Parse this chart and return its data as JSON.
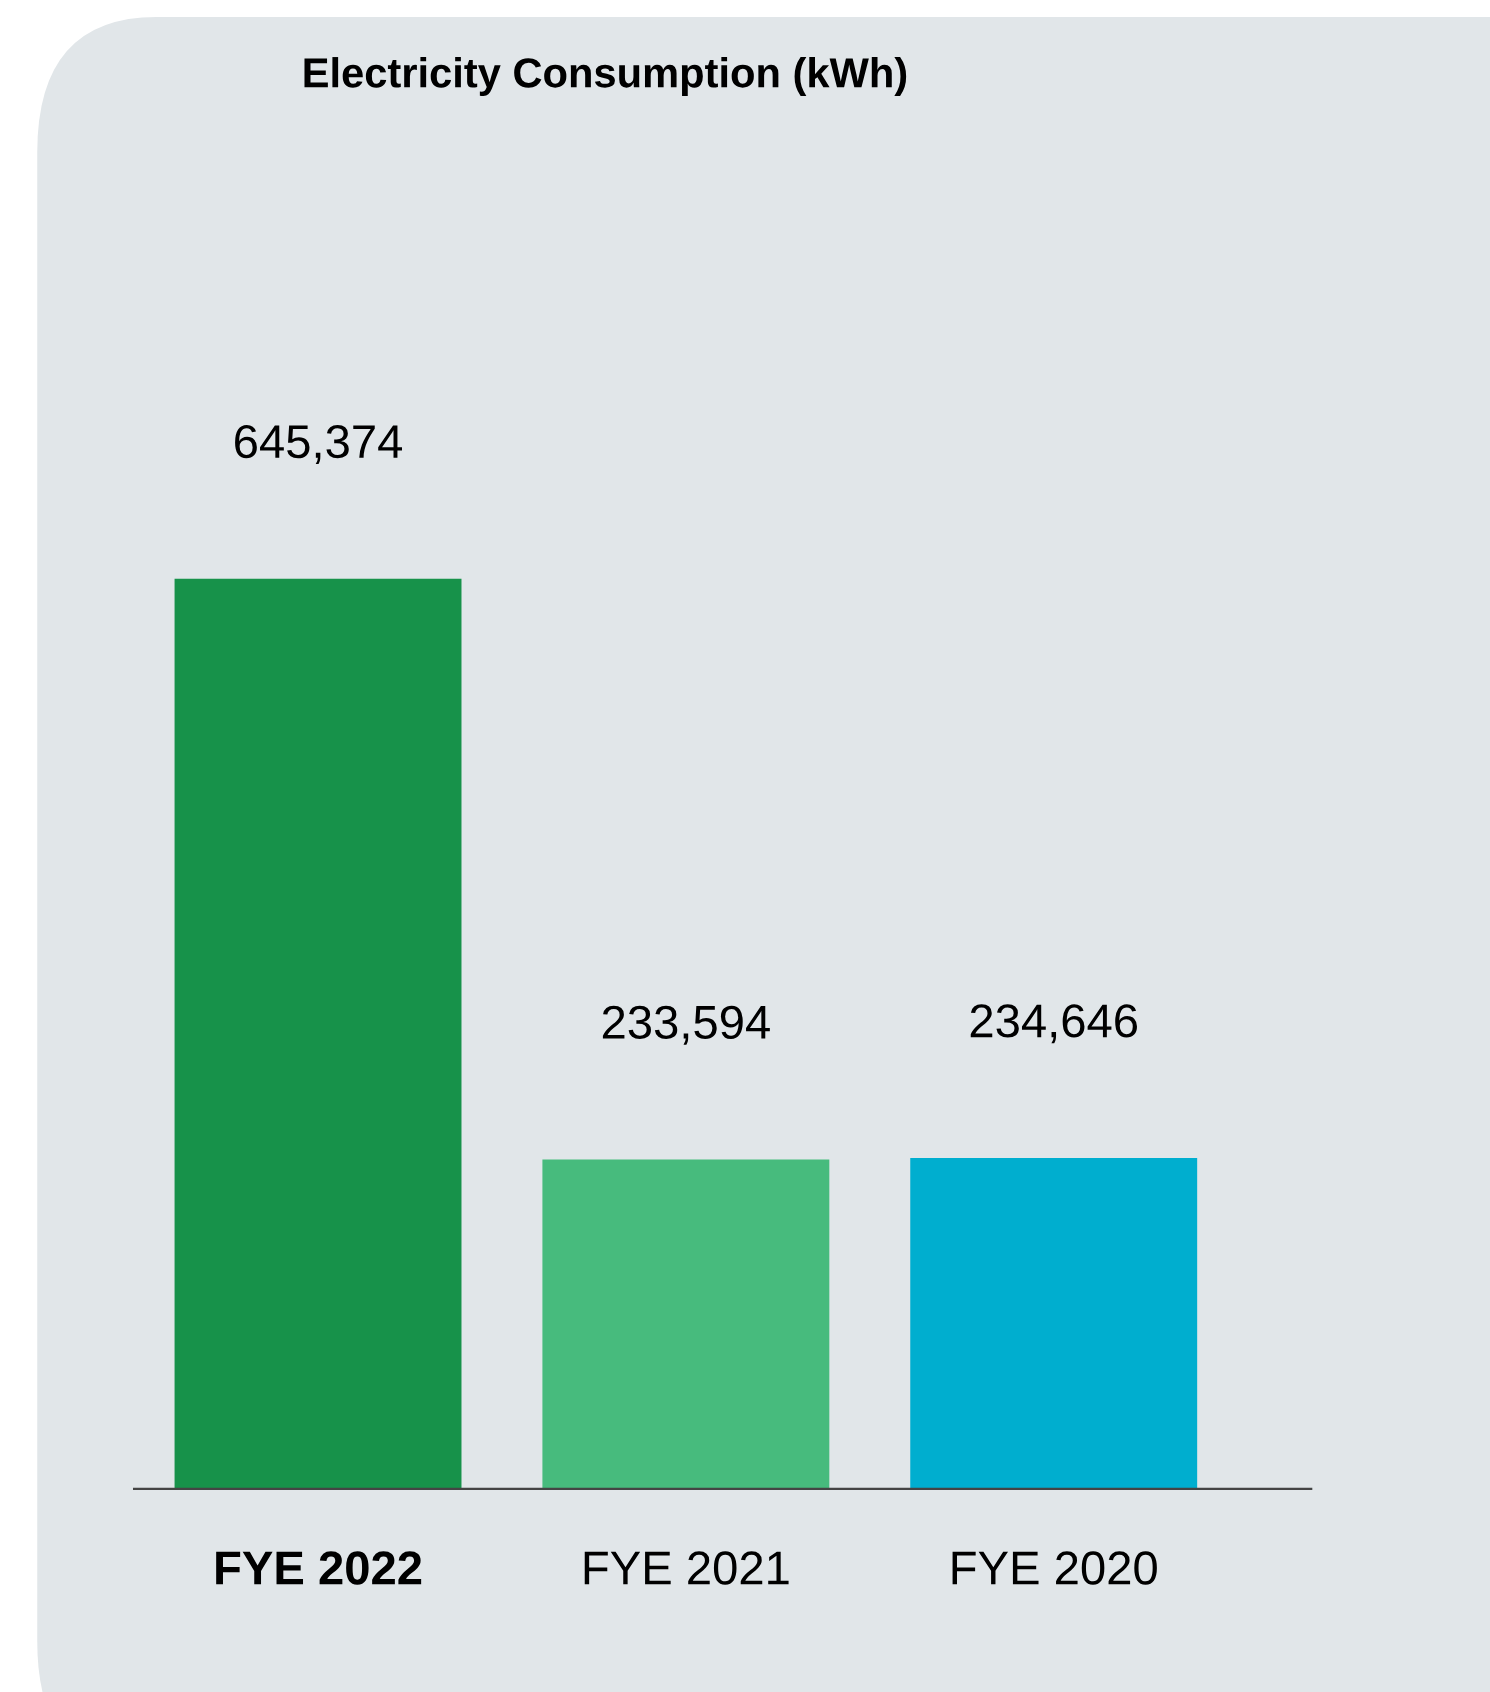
{
  "chart_data": {
    "type": "bar",
    "title": "Electricity Consumption (kWh)",
    "categories": [
      "FYE 2022",
      "FYE 2021",
      "FYE 2020"
    ],
    "values": [
      645374,
      233594,
      234646
    ],
    "colors": [
      "#17924a",
      "#47bb7d",
      "#00aecf"
    ],
    "value_labels": [
      "645,374",
      "233,594",
      "234,646"
    ]
  }
}
